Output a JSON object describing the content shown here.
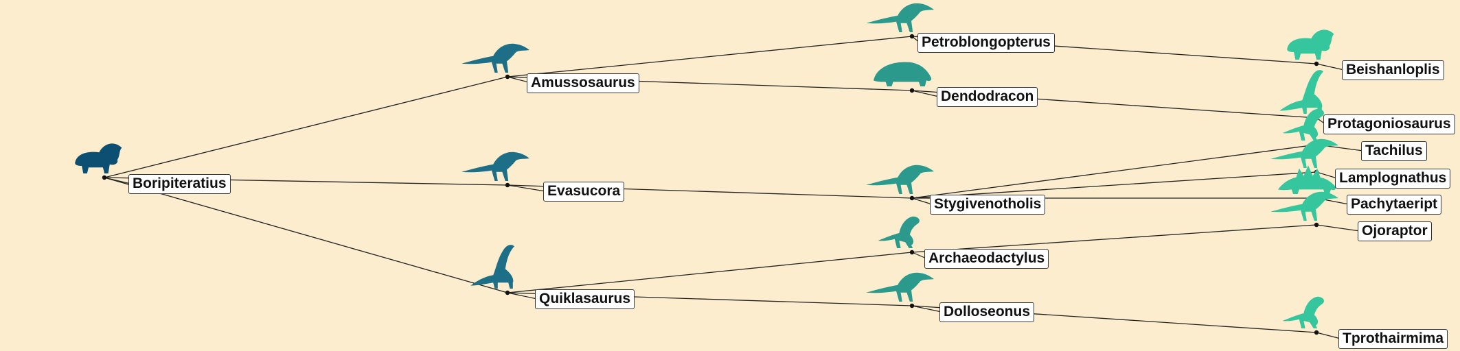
{
  "colors": {
    "background": "#fbedcd",
    "edge": "#222222",
    "depth0": "#0c4f73",
    "depth1": "#1c6f86",
    "depth2": "#2b9a8c",
    "depth3": "#36c69d"
  },
  "tree": {
    "nodes": [
      {
        "id": "boripiteratius",
        "name": "Boripiteratius",
        "parent": null,
        "depth": 0,
        "silhouette": "ceratopsian-icon"
      },
      {
        "id": "amussosaurus",
        "name": "Amussosaurus",
        "parent": "boripiteratius",
        "depth": 1,
        "silhouette": "theropod-icon"
      },
      {
        "id": "evasucora",
        "name": "Evasucora",
        "parent": "boripiteratius",
        "depth": 1,
        "silhouette": "theropod-icon"
      },
      {
        "id": "quiklasaurus",
        "name": "Quiklasaurus",
        "parent": "boripiteratius",
        "depth": 1,
        "silhouette": "sauropod-icon"
      },
      {
        "id": "petroblongopterus",
        "name": "Petroblongopterus",
        "parent": "amussosaurus",
        "depth": 2,
        "silhouette": "theropod-icon"
      },
      {
        "id": "dendodracon",
        "name": "Dendodracon",
        "parent": "amussosaurus",
        "depth": 2,
        "silhouette": "ankylosaur-icon"
      },
      {
        "id": "stygivenotholis",
        "name": "Stygivenotholis",
        "parent": "evasucora",
        "depth": 2,
        "silhouette": "theropod-icon"
      },
      {
        "id": "archaeodactylus",
        "name": "Archaeodactylus",
        "parent": "quiklasaurus",
        "depth": 2,
        "silhouette": "ornithopod-icon"
      },
      {
        "id": "dolloseonus",
        "name": "Dolloseonus",
        "parent": "quiklasaurus",
        "depth": 2,
        "silhouette": "theropod-icon"
      },
      {
        "id": "beishanloplis",
        "name": "Beishanloplis",
        "parent": "petroblongopterus",
        "depth": 3,
        "silhouette": "ceratopsian-icon"
      },
      {
        "id": "protagoniosaurus",
        "name": "Protagoniosaurus",
        "parent": "dendodracon",
        "depth": 3,
        "silhouette": "sauropod-icon"
      },
      {
        "id": "tachilus",
        "name": "Tachilus",
        "parent": "stygivenotholis",
        "depth": 3,
        "silhouette": "ornithopod-icon"
      },
      {
        "id": "lamplognathus",
        "name": "Lamplognathus",
        "parent": "stygivenotholis",
        "depth": 3,
        "silhouette": "theropod-icon"
      },
      {
        "id": "pachytaeript",
        "name": "Pachytaeript",
        "parent": "stygivenotholis",
        "depth": 3,
        "silhouette": "stegosaur-icon"
      },
      {
        "id": "ojoraptor",
        "name": "Ojoraptor",
        "parent": "archaeodactylus",
        "depth": 3,
        "silhouette": "theropod-icon"
      },
      {
        "id": "tprothairmima",
        "name": "Tprothairmima",
        "parent": "dolloseonus",
        "depth": 3,
        "silhouette": "ornithopod-icon"
      }
    ]
  }
}
